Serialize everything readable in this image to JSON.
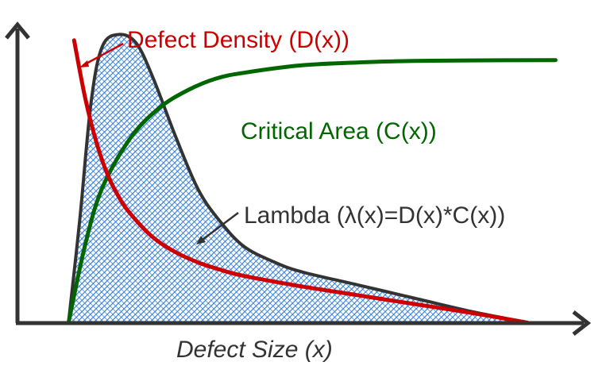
{
  "chart_data": {
    "type": "line",
    "title": "",
    "xlabel": "Defect Size (x)",
    "ylabel": "",
    "xlim": [
      0,
      10
    ],
    "ylim": [
      0,
      10
    ],
    "grid": false,
    "series": [
      {
        "name": "Defect Density (D(x))",
        "label": "Defect Density (D(x))",
        "color": "#cc0000",
        "fill": false,
        "x": [
          1.0,
          1.2,
          1.4,
          1.6,
          1.8,
          2.0,
          2.4,
          2.8,
          3.2,
          3.6,
          4.0,
          5.0,
          6.0,
          7.0,
          8.0,
          9.0
        ],
        "y": [
          9.6,
          7.6,
          6.1,
          5.0,
          4.25,
          3.7,
          2.9,
          2.4,
          2.05,
          1.8,
          1.6,
          1.25,
          0.95,
          0.65,
          0.35,
          0.02
        ]
      },
      {
        "name": "Critical Area (C(x))",
        "label": "Critical Area (C(x))",
        "color": "#006600",
        "fill": false,
        "x": [
          0.9,
          1.2,
          1.5,
          2.0,
          2.5,
          3.0,
          3.5,
          4.0,
          5.0,
          6.0,
          7.0,
          8.0,
          9.5
        ],
        "y": [
          0,
          2.7,
          4.6,
          6.3,
          7.3,
          7.9,
          8.3,
          8.5,
          8.75,
          8.85,
          8.9,
          8.92,
          8.93
        ]
      },
      {
        "name": "Lambda (λ(x)=D(x)*C(x))",
        "label": "Lambda (λ(x)=D(x)*C(x))",
        "color": "#333333",
        "fill": true,
        "fill_color": "#6fa8dc",
        "x": [
          0.9,
          1.1,
          1.3,
          1.5,
          1.8,
          2.1,
          2.4,
          2.8,
          3.2,
          3.6,
          4.0,
          4.5,
          5.0,
          6.0,
          7.0,
          8.0,
          9.0
        ],
        "y": [
          0,
          3.5,
          7.5,
          9.4,
          9.8,
          9.5,
          8.3,
          6.3,
          4.5,
          3.4,
          2.6,
          2.1,
          1.75,
          1.3,
          0.85,
          0.4,
          0.02
        ]
      }
    ]
  }
}
